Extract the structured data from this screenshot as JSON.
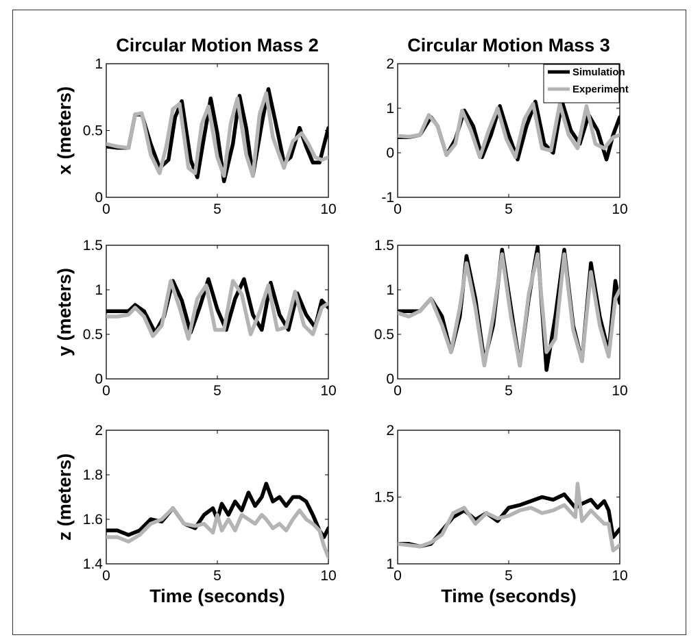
{
  "colors": {
    "simulation": "#000000",
    "experiment": "#b4b4b4"
  },
  "chart_data": [
    {
      "type": "line",
      "title": "Circular Motion Mass 2",
      "xlabel": "",
      "ylabel": "x (meters)",
      "xlim": [
        0,
        10
      ],
      "ylim": [
        0,
        1
      ],
      "xticks": [
        "0",
        "5",
        "10"
      ],
      "yticks": [
        "0",
        "0.5",
        "1"
      ],
      "series": [
        {
          "name": "Simulation",
          "x": [
            0,
            0.5,
            1,
            1.3,
            1.6,
            2,
            2.4,
            2.8,
            3.1,
            3.4,
            3.8,
            4.1,
            4.4,
            4.7,
            5,
            5.3,
            5.7,
            6,
            6.3,
            6.6,
            7,
            7.3,
            7.6,
            8,
            8.3,
            8.7,
            9,
            9.3,
            9.6,
            10
          ],
          "y": [
            0.38,
            0.37,
            0.37,
            0.62,
            0.62,
            0.4,
            0.22,
            0.28,
            0.6,
            0.72,
            0.28,
            0.15,
            0.45,
            0.74,
            0.48,
            0.12,
            0.4,
            0.76,
            0.52,
            0.16,
            0.55,
            0.81,
            0.58,
            0.26,
            0.3,
            0.52,
            0.38,
            0.26,
            0.26,
            0.52
          ]
        },
        {
          "name": "Experiment",
          "x": [
            0,
            0.5,
            1,
            1.3,
            1.6,
            2,
            2.4,
            2.7,
            3,
            3.3,
            3.7,
            4,
            4.3,
            4.6,
            5,
            5.3,
            5.6,
            5.9,
            6.3,
            6.6,
            6.9,
            7.2,
            7.5,
            8,
            8.4,
            8.8,
            9.1,
            9.4,
            9.7,
            10
          ],
          "y": [
            0.4,
            0.38,
            0.37,
            0.62,
            0.63,
            0.32,
            0.18,
            0.38,
            0.66,
            0.7,
            0.22,
            0.18,
            0.55,
            0.68,
            0.3,
            0.16,
            0.55,
            0.74,
            0.32,
            0.16,
            0.62,
            0.78,
            0.45,
            0.22,
            0.42,
            0.48,
            0.4,
            0.3,
            0.28,
            0.3
          ]
        }
      ]
    },
    {
      "type": "line",
      "title": "Circular Motion Mass 3",
      "xlabel": "",
      "ylabel": "",
      "xlim": [
        0,
        10
      ],
      "ylim": [
        -1,
        2
      ],
      "xticks": [
        "0",
        "5",
        "10"
      ],
      "yticks": [
        "-1",
        "0",
        "1",
        "2"
      ],
      "legend": {
        "placement": "top-right",
        "entries": [
          "Simulation",
          "Experiment"
        ]
      },
      "series": [
        {
          "name": "Simulation",
          "x": [
            0,
            0.5,
            1,
            1.5,
            1.8,
            2.2,
            2.6,
            3,
            3.4,
            3.8,
            4.2,
            4.6,
            5,
            5.4,
            5.8,
            6.2,
            6.6,
            7,
            7.4,
            7.8,
            8.2,
            8.6,
            9,
            9.4,
            9.7,
            10
          ],
          "y": [
            0.35,
            0.35,
            0.4,
            0.8,
            0.6,
            -0.05,
            0.3,
            0.95,
            0.6,
            -0.1,
            0.4,
            1.05,
            0.4,
            -0.15,
            0.6,
            1.15,
            0.2,
            0.0,
            1.15,
            0.5,
            0.2,
            0.85,
            0.5,
            -0.15,
            0.4,
            0.8
          ]
        },
        {
          "name": "Experiment",
          "x": [
            0,
            0.5,
            1,
            1.4,
            1.8,
            2.2,
            2.6,
            2.9,
            3.3,
            3.7,
            4.1,
            4.5,
            4.9,
            5.3,
            5.7,
            6.1,
            6.5,
            6.9,
            7.3,
            7.7,
            8.1,
            8.5,
            8.9,
            9.3,
            9.7,
            10
          ],
          "y": [
            0.38,
            0.36,
            0.4,
            0.85,
            0.6,
            -0.05,
            0.2,
            0.95,
            0.5,
            -0.1,
            0.5,
            1.0,
            0.3,
            -0.1,
            0.75,
            1.1,
            0.1,
            0.05,
            1.1,
            0.4,
            0.1,
            1.05,
            0.2,
            0.1,
            0.35,
            0.4
          ]
        }
      ]
    },
    {
      "type": "line",
      "title": "",
      "xlabel": "",
      "ylabel": "y (meters)",
      "xlim": [
        0,
        10
      ],
      "ylim": [
        0,
        1.5
      ],
      "xticks": [
        "0",
        "5",
        "10"
      ],
      "yticks": [
        "0",
        "0.5",
        "1",
        "1.5"
      ],
      "series": [
        {
          "name": "Simulation",
          "x": [
            0,
            0.5,
            1,
            1.3,
            1.7,
            2.2,
            2.6,
            3,
            3.4,
            3.8,
            4.2,
            4.6,
            5,
            5.4,
            5.8,
            6.2,
            6.6,
            7,
            7.4,
            7.8,
            8.2,
            8.6,
            9,
            9.4,
            9.7,
            10
          ],
          "y": [
            0.76,
            0.76,
            0.76,
            0.83,
            0.76,
            0.52,
            0.7,
            1.1,
            0.88,
            0.52,
            0.8,
            1.12,
            0.78,
            0.55,
            0.9,
            1.12,
            0.72,
            0.55,
            1.08,
            0.72,
            0.55,
            0.96,
            0.72,
            0.58,
            0.88,
            0.8
          ]
        },
        {
          "name": "Experiment",
          "x": [
            0,
            0.5,
            1,
            1.3,
            1.7,
            2.1,
            2.5,
            2.9,
            3.3,
            3.7,
            4.1,
            4.5,
            4.9,
            5.3,
            5.7,
            6.1,
            6.5,
            6.9,
            7.3,
            7.7,
            8.1,
            8.5,
            8.9,
            9.3,
            9.7,
            10
          ],
          "y": [
            0.7,
            0.7,
            0.72,
            0.8,
            0.7,
            0.48,
            0.6,
            1.1,
            0.8,
            0.45,
            0.9,
            1.05,
            0.55,
            0.55,
            1.1,
            0.95,
            0.5,
            0.75,
            1.05,
            0.55,
            0.58,
            0.98,
            0.6,
            0.5,
            0.8,
            0.85
          ]
        }
      ]
    },
    {
      "type": "line",
      "title": "",
      "xlabel": "",
      "ylabel": "",
      "xlim": [
        0,
        10
      ],
      "ylim": [
        0,
        1.5
      ],
      "xticks": [
        "0",
        "5",
        "10"
      ],
      "yticks": [
        "0",
        "0.5",
        "1",
        "1.5"
      ],
      "series": [
        {
          "name": "Simulation",
          "x": [
            0,
            0.5,
            1,
            1.5,
            2,
            2.4,
            2.8,
            3.1,
            3.5,
            3.9,
            4.3,
            4.7,
            5.1,
            5.5,
            5.9,
            6.3,
            6.7,
            7.1,
            7.5,
            7.9,
            8.3,
            8.7,
            9.1,
            9.5,
            9.8,
            10
          ],
          "y": [
            0.76,
            0.76,
            0.76,
            0.9,
            0.7,
            0.3,
            0.7,
            1.38,
            0.9,
            0.2,
            0.6,
            1.45,
            0.8,
            0.15,
            0.9,
            1.48,
            0.1,
            0.7,
            1.45,
            0.6,
            0.2,
            1.3,
            0.7,
            0.3,
            1.1,
            0.85
          ]
        },
        {
          "name": "Experiment",
          "x": [
            0,
            0.5,
            1,
            1.5,
            2,
            2.4,
            2.8,
            3.1,
            3.5,
            3.9,
            4.3,
            4.7,
            5.1,
            5.5,
            5.9,
            6.3,
            6.7,
            7.1,
            7.5,
            7.9,
            8.3,
            8.7,
            9.1,
            9.5,
            9.8,
            10
          ],
          "y": [
            0.74,
            0.7,
            0.76,
            0.9,
            0.6,
            0.3,
            0.8,
            1.3,
            0.8,
            0.15,
            0.7,
            1.4,
            0.7,
            0.15,
            0.95,
            1.4,
            0.3,
            0.45,
            1.4,
            0.55,
            0.2,
            1.2,
            0.6,
            0.25,
            0.9,
            1.0
          ]
        }
      ]
    },
    {
      "type": "line",
      "title": "",
      "xlabel": "Time (seconds)",
      "ylabel": "z (meters)",
      "xlim": [
        0,
        10
      ],
      "ylim": [
        1.4,
        2
      ],
      "xticks": [
        "0",
        "5",
        "10"
      ],
      "yticks": [
        "1.4",
        "1.6",
        "1.8",
        "2"
      ],
      "series": [
        {
          "name": "Simulation",
          "x": [
            0,
            0.5,
            1,
            1.5,
            2,
            2.5,
            3,
            3.5,
            4,
            4.4,
            4.8,
            5,
            5.2,
            5.5,
            5.8,
            6.1,
            6.4,
            6.7,
            7,
            7.2,
            7.5,
            7.8,
            8.1,
            8.4,
            8.7,
            9,
            9.3,
            9.6,
            9.8,
            10
          ],
          "y": [
            1.55,
            1.55,
            1.53,
            1.55,
            1.6,
            1.59,
            1.65,
            1.58,
            1.56,
            1.62,
            1.65,
            1.6,
            1.67,
            1.62,
            1.68,
            1.64,
            1.72,
            1.66,
            1.7,
            1.76,
            1.68,
            1.7,
            1.66,
            1.7,
            1.7,
            1.68,
            1.62,
            1.55,
            1.52,
            1.56
          ]
        },
        {
          "name": "Experiment",
          "x": [
            0,
            0.5,
            1,
            1.5,
            2,
            2.5,
            3,
            3.5,
            4,
            4.4,
            4.8,
            5,
            5.2,
            5.5,
            5.8,
            6.1,
            6.4,
            6.7,
            7,
            7.2,
            7.5,
            7.8,
            8.1,
            8.4,
            8.7,
            9,
            9.3,
            9.6,
            9.8,
            10
          ],
          "y": [
            1.52,
            1.52,
            1.5,
            1.53,
            1.58,
            1.6,
            1.65,
            1.58,
            1.57,
            1.58,
            1.54,
            1.62,
            1.55,
            1.6,
            1.55,
            1.62,
            1.6,
            1.58,
            1.62,
            1.6,
            1.56,
            1.58,
            1.55,
            1.6,
            1.64,
            1.6,
            1.58,
            1.55,
            1.48,
            1.43
          ]
        }
      ]
    },
    {
      "type": "line",
      "title": "",
      "xlabel": "Time (seconds)",
      "ylabel": "",
      "xlim": [
        0,
        10
      ],
      "ylim": [
        1,
        2
      ],
      "xticks": [
        "0",
        "5",
        "10"
      ],
      "yticks": [
        "1",
        "1.5",
        "2"
      ],
      "series": [
        {
          "name": "Simulation",
          "x": [
            0,
            0.5,
            1,
            1.5,
            2,
            2.5,
            3,
            3.5,
            4,
            4.5,
            5,
            5.5,
            6,
            6.5,
            7,
            7.5,
            8,
            8.3,
            8.7,
            9,
            9.3,
            9.5,
            9.7,
            10
          ],
          "y": [
            1.15,
            1.15,
            1.13,
            1.15,
            1.25,
            1.35,
            1.4,
            1.33,
            1.38,
            1.32,
            1.42,
            1.44,
            1.47,
            1.5,
            1.48,
            1.52,
            1.42,
            1.45,
            1.48,
            1.42,
            1.47,
            1.4,
            1.2,
            1.26
          ]
        },
        {
          "name": "Experiment",
          "x": [
            0,
            0.5,
            1,
            1.5,
            2,
            2.5,
            3,
            3.5,
            4,
            4.5,
            5,
            5.5,
            6,
            6.5,
            7,
            7.5,
            8,
            8.1,
            8.3,
            8.7,
            9,
            9.3,
            9.5,
            9.7,
            10
          ],
          "y": [
            1.15,
            1.14,
            1.13,
            1.16,
            1.22,
            1.38,
            1.42,
            1.3,
            1.38,
            1.34,
            1.36,
            1.4,
            1.42,
            1.38,
            1.4,
            1.44,
            1.35,
            1.6,
            1.32,
            1.4,
            1.35,
            1.3,
            1.3,
            1.1,
            1.14
          ]
        }
      ]
    }
  ]
}
